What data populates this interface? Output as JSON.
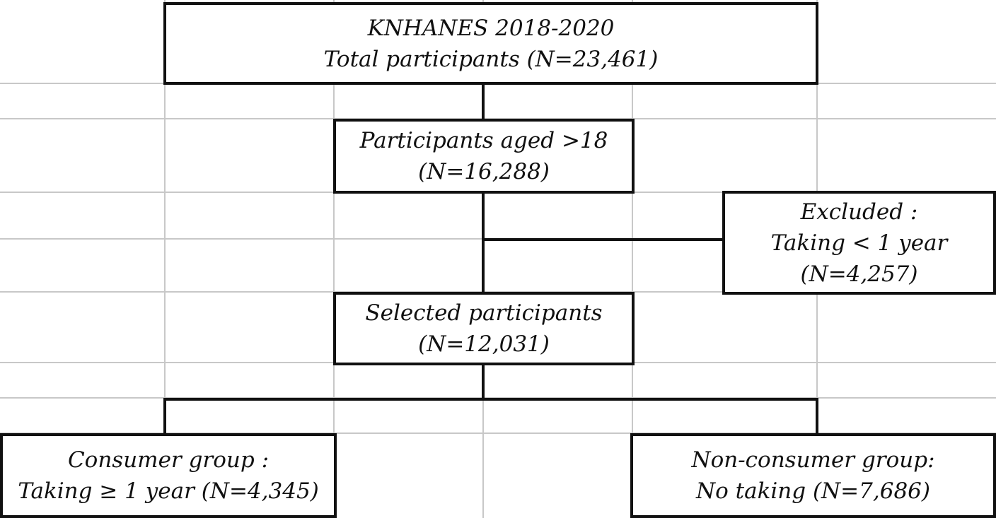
{
  "colors": {
    "box_border": "#111111",
    "grid_line": "#c8c8c8",
    "text": "#111111",
    "background": "#ffffff"
  },
  "boxes": {
    "total": {
      "line1": "KNHANES 2018-2020",
      "line2": "Total participants (N=23,461)"
    },
    "aged": {
      "line1": "Participants aged >18",
      "line2": "(N=16,288)"
    },
    "excluded": {
      "line1": "Excluded :",
      "line2": "Taking < 1 year",
      "line3": "(N=4,257)"
    },
    "selected": {
      "line1": "Selected participants",
      "line2": "(N=12,031)"
    },
    "consumer": {
      "line1": "Consumer group :",
      "line2": "Taking ≥ 1 year (N=4,345)"
    },
    "nonconsumer": {
      "line1": "Non-consumer group:",
      "line2": "No taking (N=7,686)"
    }
  }
}
